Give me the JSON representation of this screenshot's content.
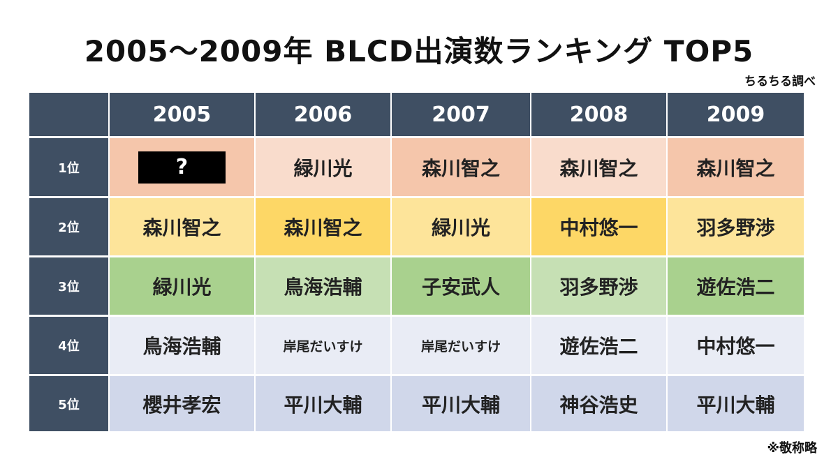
{
  "header": {
    "title": "2005〜2009年 BLCD出演数ランキング TOP5",
    "source": "ちるちる調べ"
  },
  "table": {
    "columns": [
      "2005",
      "2006",
      "2007",
      "2008",
      "2009"
    ],
    "rows": [
      {
        "label": "1位",
        "cells": [
          "?",
          "緑川光",
          "森川智之",
          "森川智之",
          "森川智之"
        ]
      },
      {
        "label": "2位",
        "cells": [
          "森川智之",
          "森川智之",
          "緑川光",
          "中村悠一",
          "羽多野渉"
        ]
      },
      {
        "label": "3位",
        "cells": [
          "緑川光",
          "鳥海浩輔",
          "子安武人",
          "羽多野渉",
          "遊佐浩二"
        ]
      },
      {
        "label": "4位",
        "cells": [
          "鳥海浩輔",
          "岸尾だいすけ",
          "岸尾だいすけ",
          "遊佐浩二",
          "中村悠一"
        ]
      },
      {
        "label": "5位",
        "cells": [
          "櫻井孝宏",
          "平川大輔",
          "平川大輔",
          "神谷浩史",
          "平川大輔"
        ]
      }
    ]
  },
  "footnote": "※敬称略"
}
